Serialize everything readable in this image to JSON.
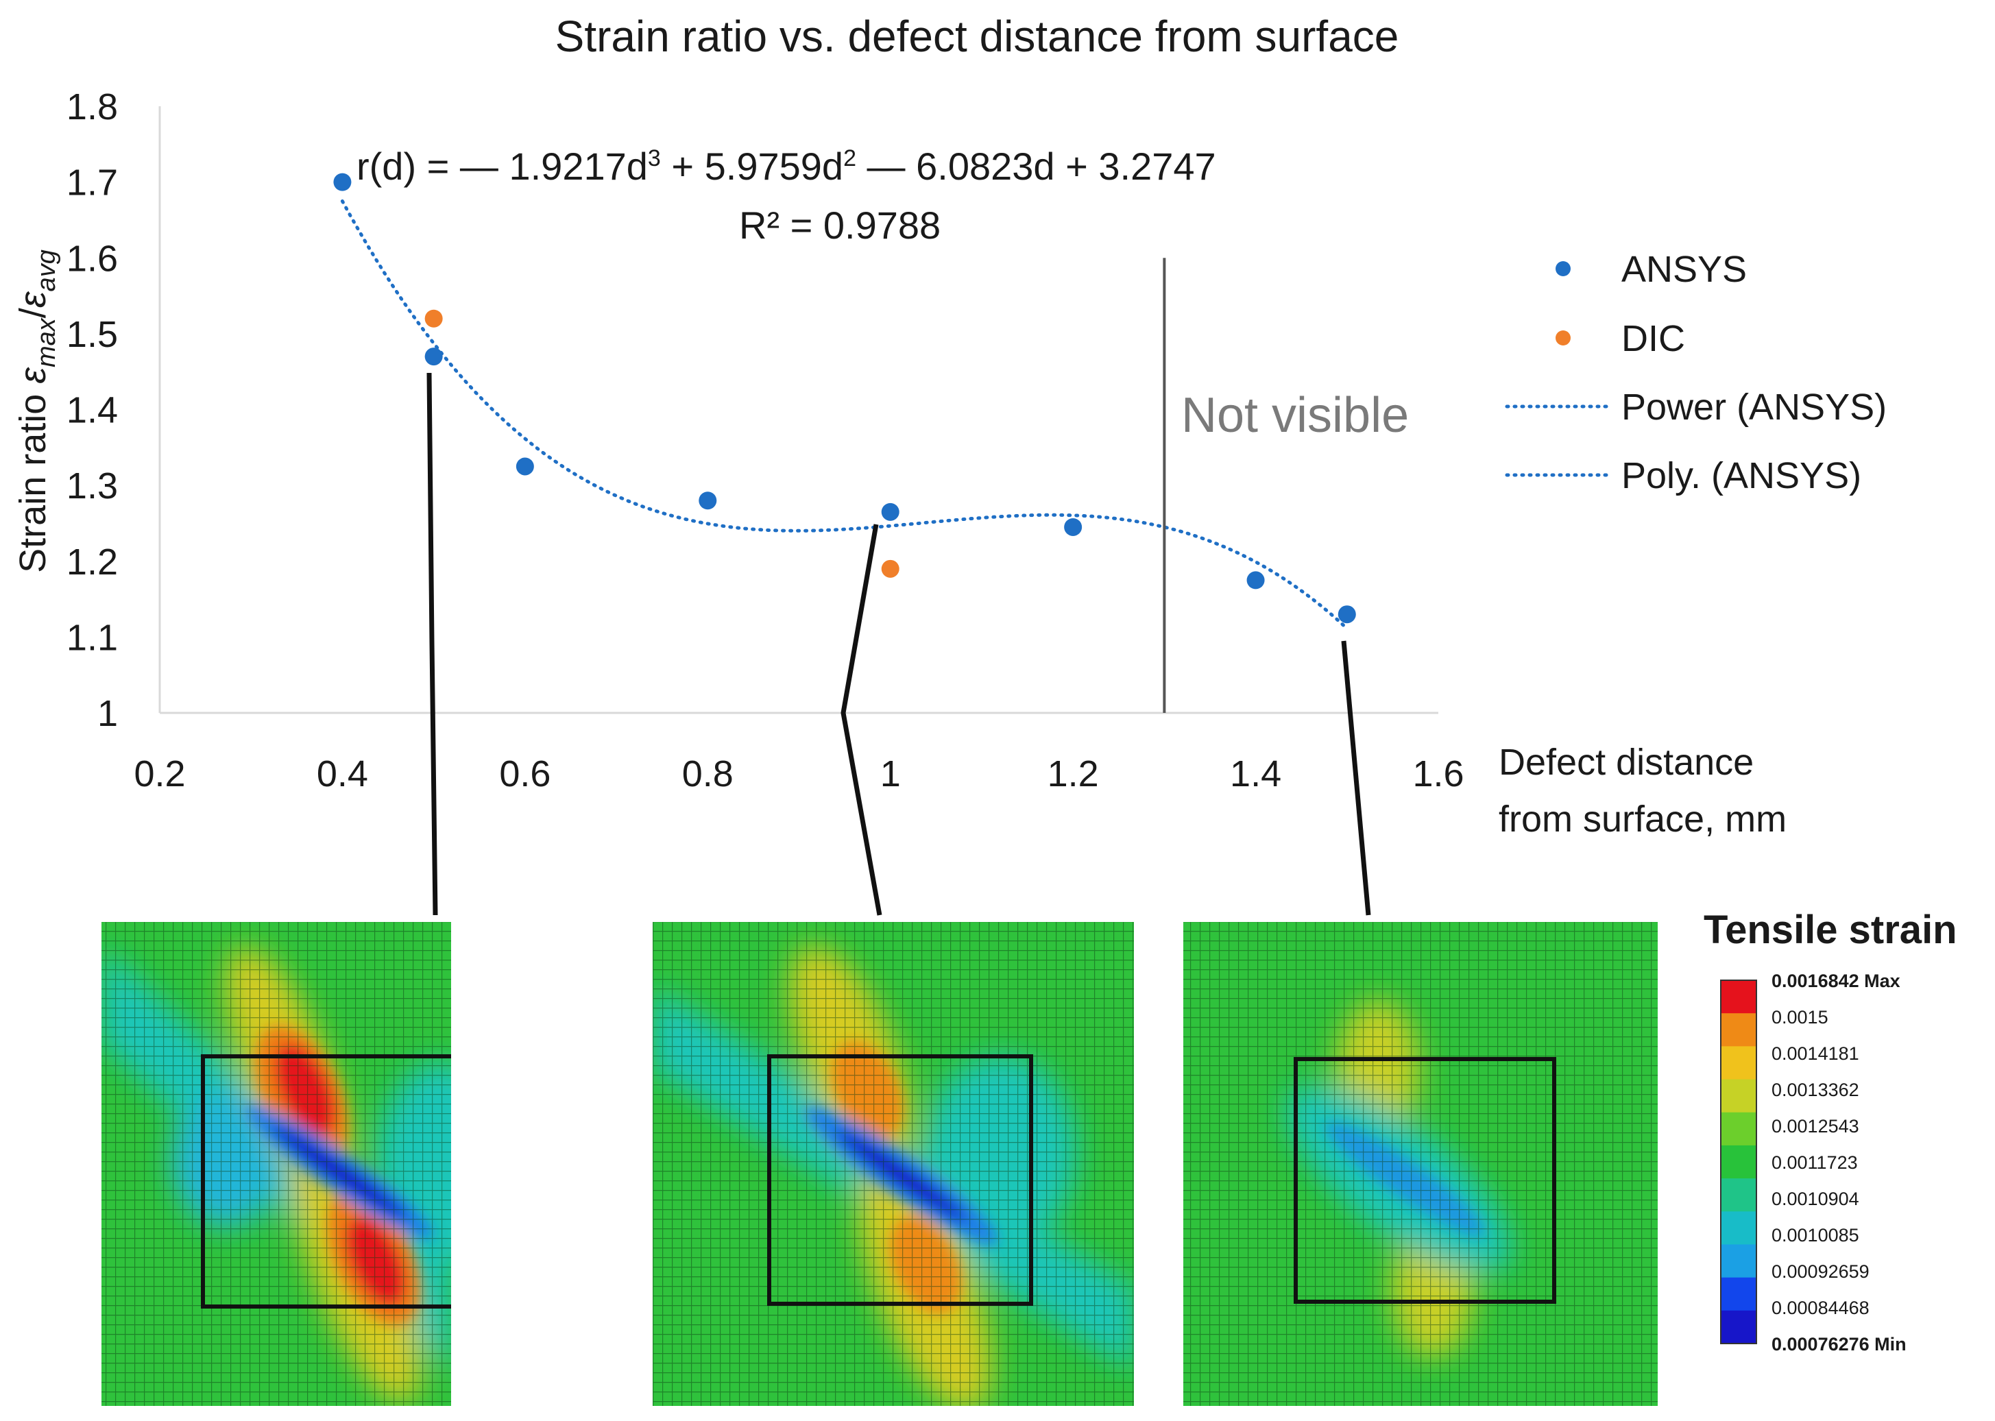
{
  "chart_data": {
    "type": "scatter",
    "title": "Strain ratio vs. defect distance from surface",
    "ylabel": "Strain ratio εmax/εavg",
    "ylabel_parts": {
      "prefix": "Strain ratio ",
      "eps": "ε",
      "sub1": "max",
      "slash": "/",
      "sub2": "avg"
    },
    "xlabel_lines": [
      "Defect distance",
      "from surface, mm"
    ],
    "xlim": [
      0.2,
      1.6
    ],
    "ylim": [
      1.0,
      1.8
    ],
    "x_ticks": [
      "0.2",
      "0.4",
      "0.6",
      "0.8",
      "1",
      "1.2",
      "1.4",
      "1.6"
    ],
    "y_ticks": [
      "1",
      "1.1",
      "1.2",
      "1.3",
      "1.4",
      "1.5",
      "1.6",
      "1.7",
      "1.8"
    ],
    "grid": false,
    "legend_position": "right",
    "series": [
      {
        "name": "ANSYS",
        "color": "#1f6fc5",
        "x": [
          0.4,
          0.5,
          0.6,
          0.8,
          1.0,
          1.2,
          1.4,
          1.5
        ],
        "y": [
          1.7,
          1.47,
          1.325,
          1.28,
          1.265,
          1.245,
          1.175,
          1.13
        ]
      },
      {
        "name": "DIC",
        "color": "#f07f2a",
        "x": [
          0.5,
          1.0
        ],
        "y": [
          1.52,
          1.19
        ]
      }
    ],
    "legend": [
      {
        "label": "ANSYS",
        "kind": "marker",
        "color": "#1f6fc5"
      },
      {
        "label": "DIC",
        "kind": "marker",
        "color": "#f07f2a"
      },
      {
        "label": "Power (ANSYS)",
        "kind": "dotted-line",
        "color": "#1f6fc5"
      },
      {
        "label": "Poly. (ANSYS)",
        "kind": "dotted-line",
        "color": "#1f6fc5"
      }
    ],
    "trendline": {
      "color": "#1f6fc5",
      "coefficients": [
        -1.9217,
        5.9759,
        -6.0823,
        3.2747
      ],
      "x_range": [
        0.4,
        1.5
      ],
      "equation_parts": {
        "lhs": "r(d) = ",
        "t1": "— 1.9217d",
        "e1": "3",
        "t2": " + 5.9759d",
        "e2": "2",
        "t3": " — 6.0823d + 3.2747"
      },
      "r2_label": "R² = 0.9788"
    },
    "vertical_line": {
      "x": 1.3,
      "y_top": 1.6,
      "label": "Not visible",
      "color": "#555555"
    },
    "connectors": [
      {
        "from_x": 0.5,
        "to_panel": 0
      },
      {
        "from_x": 1.0,
        "to_panel": 1
      },
      {
        "from_x": 1.5,
        "to_panel": 2
      }
    ]
  },
  "colorbar": {
    "title": "Tensile strain",
    "colors": [
      "#e5121c",
      "#ef8a16",
      "#f0c21c",
      "#c6d226",
      "#6ccf2c",
      "#28c23a",
      "#1fc488",
      "#18bcc8",
      "#1ba0e4",
      "#1246ec",
      "#1716c9"
    ],
    "labels": [
      {
        "text": "0.0016842 Max",
        "bold": true
      },
      {
        "text": "0.0015",
        "bold": false
      },
      {
        "text": "0.0014181",
        "bold": false
      },
      {
        "text": "0.0013362",
        "bold": false
      },
      {
        "text": "0.0012543",
        "bold": false
      },
      {
        "text": "0.0011723",
        "bold": false
      },
      {
        "text": "0.0010904",
        "bold": false
      },
      {
        "text": "0.0010085",
        "bold": false
      },
      {
        "text": "0.00092659",
        "bold": false
      },
      {
        "text": "0.00084468",
        "bold": false
      },
      {
        "text": "0.00076276 Min",
        "bold": true
      }
    ]
  },
  "panels": [
    {
      "defect_distance_mm": 0.5,
      "peak_color": "#e5121c"
    },
    {
      "defect_distance_mm": 1.0,
      "peak_color": "#ef8a16"
    },
    {
      "defect_distance_mm": 1.5,
      "peak_color": "#c6d226"
    }
  ]
}
